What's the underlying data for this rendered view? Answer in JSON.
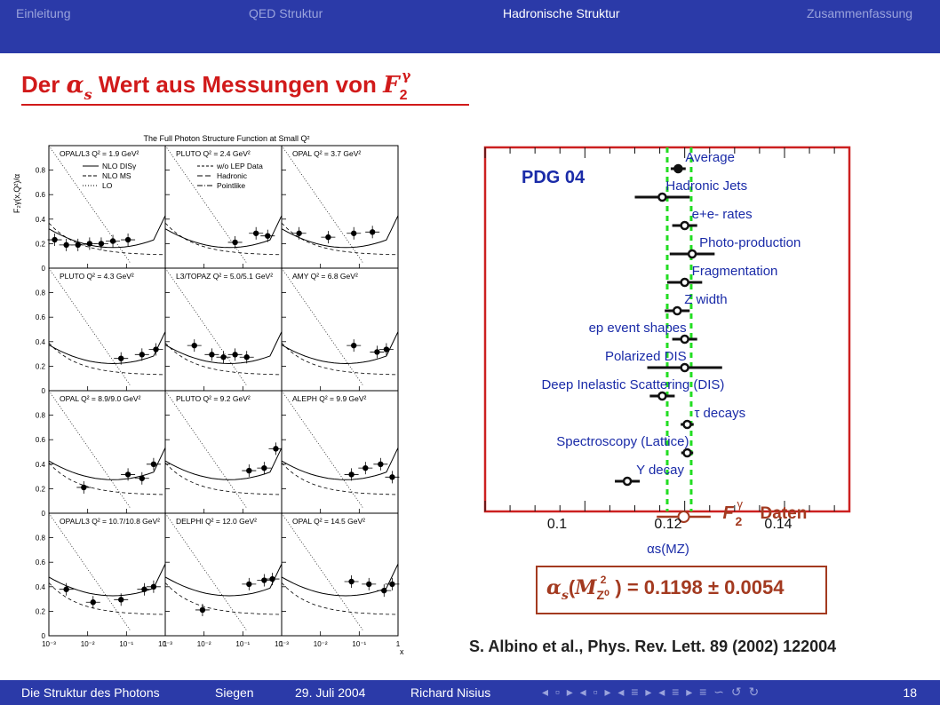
{
  "nav": {
    "sections": [
      "Einleitung",
      "QED Struktur",
      "Hadronische Struktur",
      "Zusammenfassung"
    ],
    "active_index": 2
  },
  "slide": {
    "title_prefix": "Der ",
    "title_alpha": "α",
    "title_alpha_sub": "s",
    "title_middle": " Wert aus Messungen von ",
    "title_F": "F",
    "title_F_sub": "2",
    "title_F_sup": "γ"
  },
  "left_figure": {
    "title": "The Full Photon Structure Function at Small Q²",
    "ylabel": "F₂γ(x,Q²)/α",
    "xlabel": "x",
    "y_ticks": [
      "0",
      "0.2",
      "0.4",
      "0.6",
      "0.8"
    ],
    "x_ticks": [
      "10⁻³",
      "10⁻²",
      "10⁻¹",
      "1"
    ],
    "legend_left": [
      "NLO DISγ",
      "NLO MS",
      "LO"
    ],
    "legend_right": [
      "w/o LEP Data",
      "Hadronic",
      "Pointlike"
    ],
    "panels": [
      "OPAL/L3  Q² = 1.9 GeV²",
      "PLUTO  Q² = 2.4 GeV²",
      "OPAL  Q² = 3.7 GeV²",
      "PLUTO  Q² = 4.3 GeV²",
      "L3/TOPAZ  Q² = 5.0/5.1 GeV²",
      "AMY  Q² = 6.8 GeV²",
      "OPAL  Q² = 8.9/9.0 GeV²",
      "PLUTO  Q² = 9.2 GeV²",
      "ALEPH  Q² = 9.9 GeV²",
      "OPAL/L3  Q² = 10.7/10.8 GeV²",
      "DELPHI  Q² = 12.0 GeV²",
      "OPAL  Q² = 14.5 GeV²"
    ]
  },
  "chart_data": {
    "type": "scatter",
    "title": "PDG 04",
    "xlabel": "αs(MZ)",
    "x_ticks": [
      "0.1",
      "0.12",
      "0.14"
    ],
    "xlim": [
      0.08,
      0.153
    ],
    "band": [
      0.1165,
      0.1213
    ],
    "points": [
      {
        "label": "Average",
        "value": 0.1187,
        "err": 0.0015,
        "filled": true
      },
      {
        "label": "Hadronic Jets",
        "value": 0.1155,
        "err": 0.0055
      },
      {
        "label": "e+e- rates",
        "value": 0.12,
        "err": 0.0025
      },
      {
        "label": "Photo-production",
        "value": 0.1215,
        "err": 0.0045
      },
      {
        "label": "Fragmentation",
        "value": 0.12,
        "err": 0.0035
      },
      {
        "label": "Z width",
        "value": 0.1185,
        "err": 0.0025
      },
      {
        "label": "ep event shapes",
        "value": 0.12,
        "err": 0.0025
      },
      {
        "label": "Polarized DIS",
        "value": 0.12,
        "err": 0.0075
      },
      {
        "label": "Deep Inelastic Scattering (DIS)",
        "value": 0.1155,
        "err": 0.0025
      },
      {
        "label": "τ decays",
        "value": 0.1205,
        "err": 0.0013
      },
      {
        "label": "Spectroscopy (Lattice)",
        "value": 0.1205,
        "err": 0.0012
      },
      {
        "label": "Υ decay",
        "value": 0.1085,
        "err": 0.0025
      }
    ],
    "highlight": {
      "label_F": "F",
      "label_sub": "2",
      "label_sup": "γ",
      "label_rest": "Daten",
      "value": 0.1198,
      "err": 0.0054
    }
  },
  "result": {
    "alpha": "α",
    "alpha_sub": "s",
    "M": "M",
    "M_sup": "2",
    "M_sub": "Z⁰",
    "equation_rest": ") = 0.1198 ± 0.0054"
  },
  "reference": "S. Albino et al., Phys. Rev. Lett. 89 (2002) 122004",
  "footer": {
    "talk": "Die Struktur des Photons",
    "place": "Siegen",
    "date": "29. Juli 2004",
    "author": "Richard Nisius",
    "nav_glyphs": "◂ ▫ ▸ ◂ ▫ ▸ ◂ ≡ ▸ ◂ ≡ ▸ ≡ ∽ ↺ ↻",
    "page": "18"
  },
  "colors": {
    "nav_bg": "#2b3aa8",
    "title_red": "#d11a1a",
    "frame_red": "#cc2020",
    "blue_text": "#1a2ba8",
    "band_green": "#22dd22",
    "result_brown": "#a33a20"
  }
}
